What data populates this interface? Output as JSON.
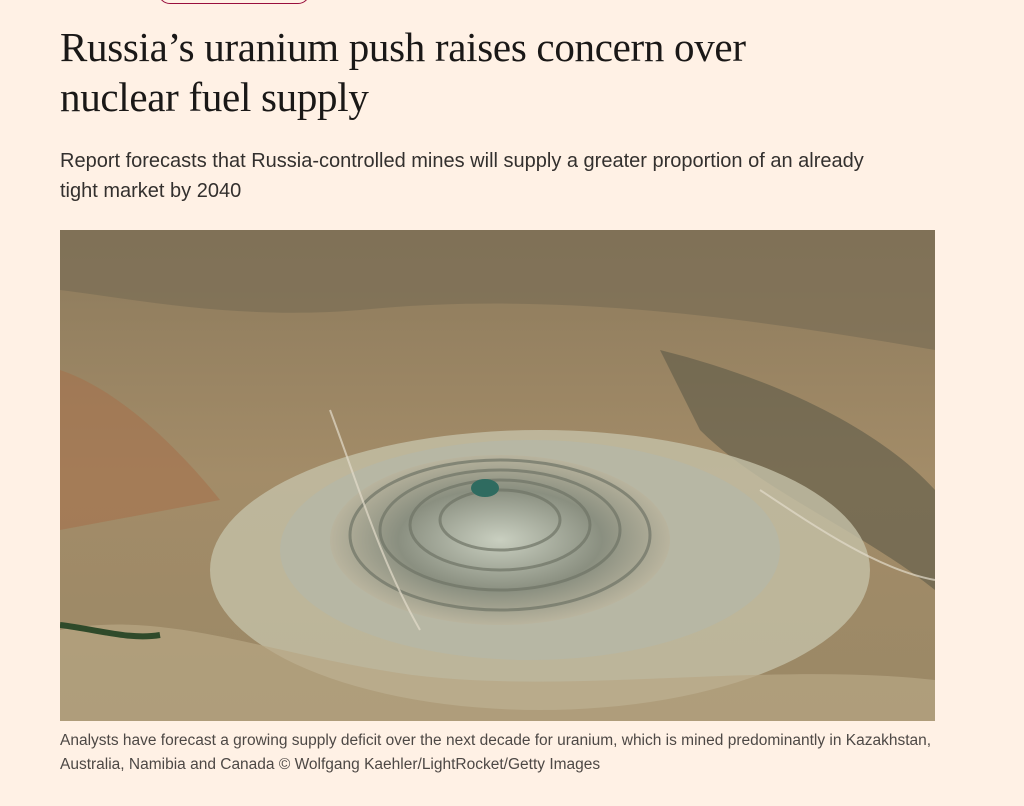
{
  "article": {
    "headline": "Russia’s uranium push raises concern over nuclear fuel supply",
    "standfirst": "Report forecasts that Russia-controlled mines will supply a greater proportion of an already tight market by 2040",
    "image": {
      "caption": "Analysts have forecast a growing supply deficit over the next decade for uranium, which is mined predominantly in Kazakhstan, Australia, Namibia and Canada © Wolfgang Kaehler/LightRocket/Getty Images"
    }
  }
}
